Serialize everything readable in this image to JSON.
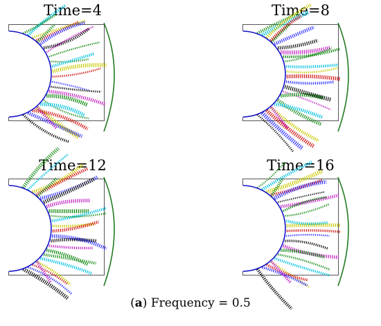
{
  "panels": [
    {
      "title": "Time=4",
      "seed": 4
    },
    {
      "title": "Time=8",
      "seed": 8
    },
    {
      "title": "Time=12",
      "seed": 12
    },
    {
      "title": "Time=16",
      "seed": 16
    }
  ],
  "caption": {
    "label": "a",
    "text": "Frequency = 0.5"
  },
  "colors": {
    "frame": "#555555",
    "inner_circle": "#1414c8",
    "outer_arc": "#207a20",
    "streaks": [
      "#1f8f1f",
      "#00c0e0",
      "#c8c800",
      "#d01010",
      "#3030ff",
      "#101010",
      "#c020c0",
      "#008000"
    ]
  }
}
